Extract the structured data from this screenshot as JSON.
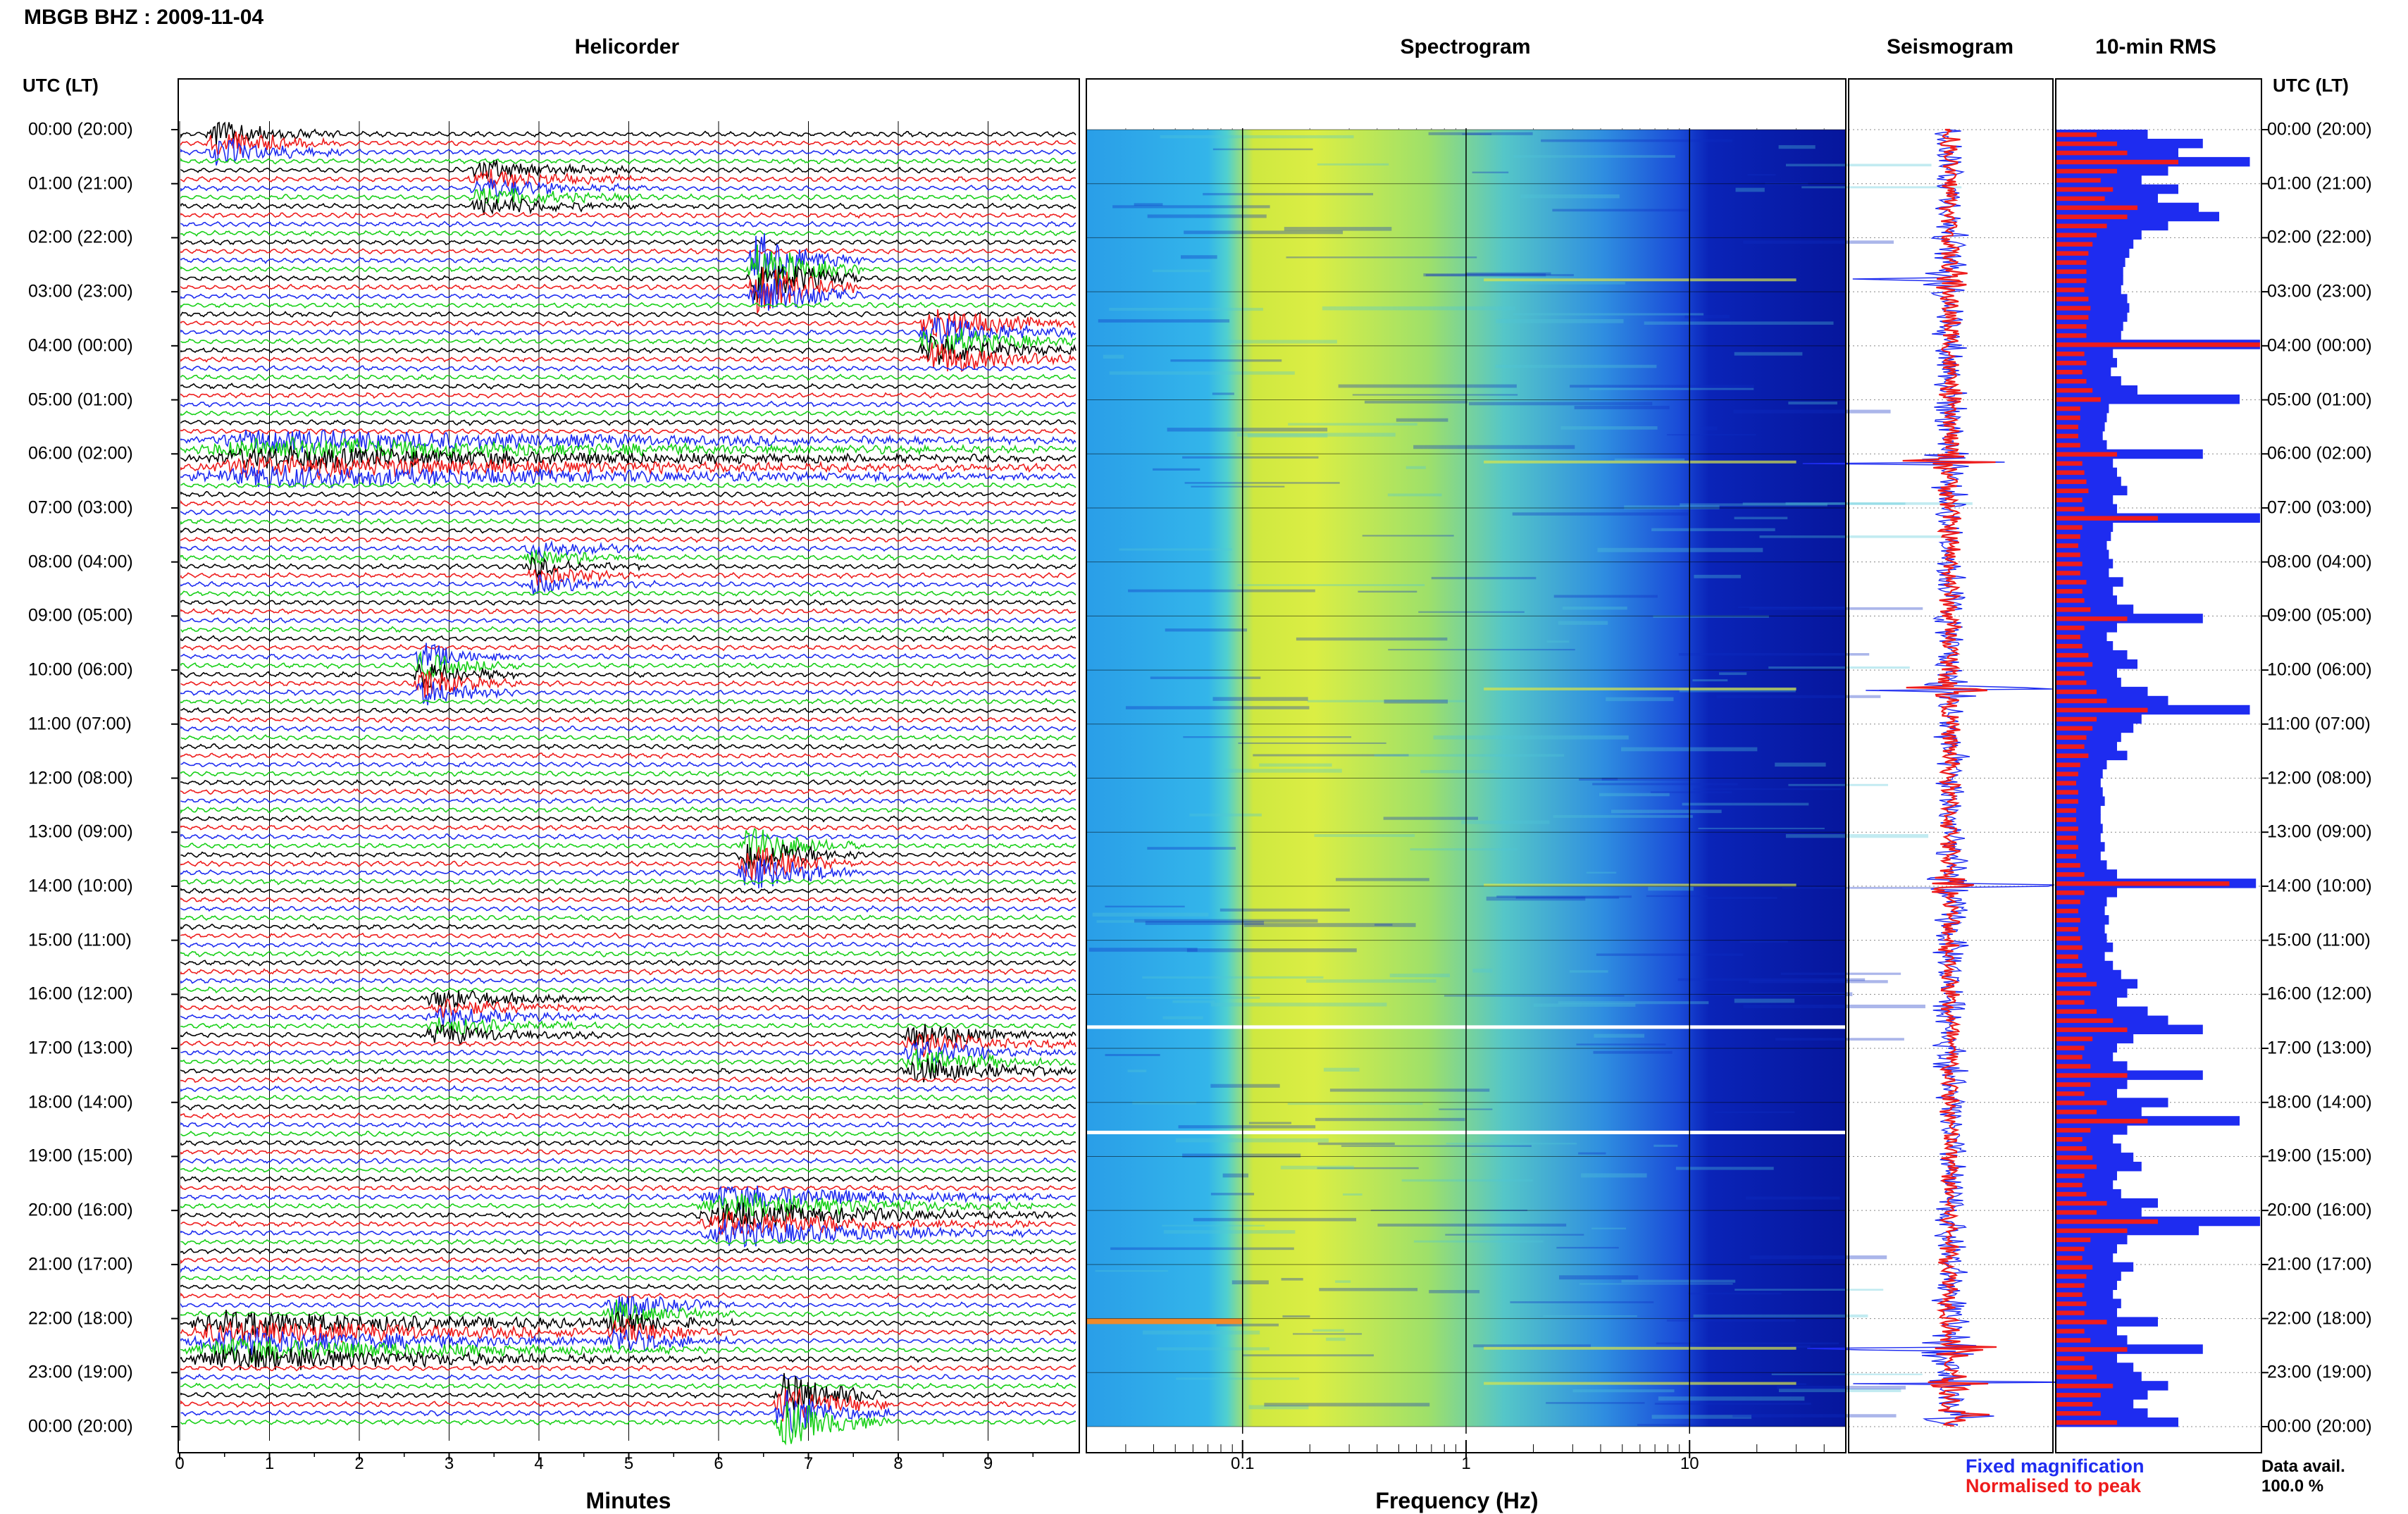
{
  "header": {
    "title": "MBGB BHZ : 2009-11-04"
  },
  "panels": {
    "helicorder": "Helicorder",
    "spectrogram": "Spectrogram",
    "seismogram": "Seismogram",
    "rms": "10-min RMS"
  },
  "axis": {
    "utc_label_left": "UTC (LT)",
    "utc_label_right": "UTC (LT)",
    "time_labels": [
      "00:00 (20:00)",
      "01:00 (21:00)",
      "02:00 (22:00)",
      "03:00 (23:00)",
      "04:00 (00:00)",
      "05:00 (01:00)",
      "06:00 (02:00)",
      "07:00 (03:00)",
      "08:00 (04:00)",
      "09:00 (05:00)",
      "10:00 (06:00)",
      "11:00 (07:00)",
      "12:00 (08:00)",
      "13:00 (09:00)",
      "14:00 (10:00)",
      "15:00 (11:00)",
      "16:00 (12:00)",
      "17:00 (13:00)",
      "18:00 (14:00)",
      "19:00 (15:00)",
      "20:00 (16:00)",
      "21:00 (17:00)",
      "22:00 (18:00)",
      "23:00 (19:00)",
      "00:00 (20:00)"
    ],
    "minutes_ticks": [
      "0",
      "1",
      "2",
      "3",
      "4",
      "5",
      "6",
      "7",
      "8",
      "9"
    ],
    "minutes_label": "Minutes",
    "freq_ticks": [
      "0.1",
      "1",
      "10"
    ],
    "freq_label": "Frequency (Hz)"
  },
  "legend": {
    "fixed": "Fixed magnification",
    "normalised": "Normalised to peak",
    "data_avail_label": "Data avail.",
    "data_avail_value": "100.0 %"
  },
  "colors": {
    "trace_cycle": [
      "#000000",
      "#ee1c1c",
      "#1e2cf0",
      "#18d018"
    ],
    "fixed": "#1e2cf0",
    "normalised": "#ee1c1c"
  },
  "chart_data": [
    {
      "type": "line",
      "title": "Helicorder",
      "xlabel": "Minutes",
      "xlim": [
        0,
        10
      ],
      "rows_per_hour": 6,
      "hours": 24,
      "events": [
        {
          "hour": 0.05,
          "minute": 0.3,
          "duration": 1.5,
          "amp": 1.8
        },
        {
          "hour": 1.0,
          "minute": 3.2,
          "duration": 2.0,
          "amp": 1.2
        },
        {
          "hour": 2.7,
          "minute": 6.3,
          "duration": 1.3,
          "amp": 3.5
        },
        {
          "hour": 3.9,
          "minute": 8.2,
          "duration": 1.8,
          "amp": 2.2
        },
        {
          "hour": 6.0,
          "minute": 0.0,
          "duration": 10.0,
          "amp": 1.4
        },
        {
          "hour": 8.0,
          "minute": 3.8,
          "duration": 1.5,
          "amp": 1.1
        },
        {
          "hour": 10.0,
          "minute": 2.6,
          "duration": 1.2,
          "amp": 1.8
        },
        {
          "hour": 13.4,
          "minute": 6.2,
          "duration": 1.4,
          "amp": 2.5
        },
        {
          "hour": 16.4,
          "minute": 2.7,
          "duration": 2.0,
          "amp": 1.2
        },
        {
          "hour": 17.0,
          "minute": 8.0,
          "duration": 2.0,
          "amp": 1.6
        },
        {
          "hour": 20.0,
          "minute": 5.7,
          "duration": 4.0,
          "amp": 1.6
        },
        {
          "hour": 22.0,
          "minute": 4.7,
          "duration": 1.5,
          "amp": 1.7
        },
        {
          "hour": 22.4,
          "minute": 0.0,
          "duration": 6.0,
          "amp": 1.6
        },
        {
          "hour": 23.6,
          "minute": 6.6,
          "duration": 1.3,
          "amp": 3.0
        }
      ]
    },
    {
      "type": "heatmap",
      "title": "Spectrogram",
      "xlabel": "Frequency (Hz)",
      "x_scale": "log",
      "xlim": [
        0.02,
        50
      ],
      "ylim_hours": [
        0,
        24
      ],
      "data_gaps_hours": [
        16.6,
        18.55
      ]
    },
    {
      "type": "line",
      "title": "Seismogram",
      "series": [
        {
          "name": "Fixed magnification"
        },
        {
          "name": "Normalised to peak"
        }
      ],
      "spikes_hours": [
        2.78,
        6.15,
        10.35,
        13.98,
        22.55,
        23.2,
        23.8
      ]
    },
    {
      "type": "bar",
      "title": "10-min RMS",
      "orientation": "horizontal",
      "series": [
        {
          "name": "Fixed magnification",
          "values": [
            0.45,
            0.72,
            0.6,
            0.95,
            0.55,
            0.42,
            0.6,
            0.5,
            0.7,
            0.8,
            0.55,
            0.42,
            0.38,
            0.36,
            0.34,
            0.33,
            0.33,
            0.32,
            0.35,
            0.36,
            0.35,
            0.33,
            0.32,
            1.0,
            0.28,
            0.3,
            0.27,
            0.32,
            0.4,
            0.9,
            0.26,
            0.25,
            0.24,
            0.23,
            0.25,
            0.72,
            0.28,
            0.3,
            0.32,
            0.35,
            0.28,
            0.3,
            1.0,
            0.28,
            0.27,
            0.25,
            0.26,
            0.28,
            0.26,
            0.33,
            0.28,
            0.3,
            0.38,
            0.72,
            0.3,
            0.25,
            0.28,
            0.35,
            0.4,
            0.3,
            0.32,
            0.45,
            0.55,
            0.95,
            0.42,
            0.38,
            0.32,
            0.3,
            0.35,
            0.25,
            0.23,
            0.22,
            0.23,
            0.24,
            0.22,
            0.22,
            0.23,
            0.22,
            0.24,
            0.22,
            0.25,
            0.3,
            0.98,
            0.3,
            0.25,
            0.24,
            0.26,
            0.24,
            0.25,
            0.28,
            0.24,
            0.28,
            0.32,
            0.4,
            0.35,
            0.3,
            0.45,
            0.55,
            0.72,
            0.38,
            0.3,
            0.28,
            0.35,
            0.72,
            0.35,
            0.3,
            0.55,
            0.42,
            0.9,
            0.35,
            0.28,
            0.32,
            0.38,
            0.42,
            0.3,
            0.28,
            0.32,
            0.5,
            0.42,
            1.0,
            0.7,
            0.35,
            0.3,
            0.28,
            0.38,
            0.32,
            0.3,
            0.28,
            0.32,
            0.3,
            0.5,
            0.3,
            0.35,
            0.72,
            0.3,
            0.38,
            0.42,
            0.55,
            0.45,
            0.38,
            0.45,
            0.6
          ]
        },
        {
          "name": "Normalised to peak",
          "values": [
            0.2,
            0.3,
            0.35,
            0.6,
            0.3,
            0.22,
            0.28,
            0.24,
            0.4,
            0.35,
            0.25,
            0.2,
            0.18,
            0.16,
            0.15,
            0.15,
            0.15,
            0.14,
            0.16,
            0.17,
            0.16,
            0.15,
            0.15,
            1.0,
            0.14,
            0.15,
            0.13,
            0.15,
            0.18,
            0.22,
            0.12,
            0.12,
            0.11,
            0.11,
            0.12,
            0.3,
            0.13,
            0.14,
            0.15,
            0.16,
            0.13,
            0.14,
            0.5,
            0.13,
            0.12,
            0.11,
            0.12,
            0.13,
            0.12,
            0.15,
            0.13,
            0.14,
            0.17,
            0.35,
            0.14,
            0.12,
            0.13,
            0.16,
            0.18,
            0.14,
            0.15,
            0.2,
            0.25,
            0.45,
            0.2,
            0.18,
            0.15,
            0.14,
            0.16,
            0.12,
            0.11,
            0.1,
            0.11,
            0.11,
            0.1,
            0.1,
            0.11,
            0.1,
            0.11,
            0.1,
            0.12,
            0.14,
            0.85,
            0.14,
            0.12,
            0.11,
            0.12,
            0.11,
            0.12,
            0.13,
            0.11,
            0.13,
            0.15,
            0.2,
            0.17,
            0.14,
            0.2,
            0.28,
            0.35,
            0.18,
            0.14,
            0.13,
            0.17,
            0.35,
            0.17,
            0.14,
            0.25,
            0.2,
            0.45,
            0.17,
            0.13,
            0.15,
            0.18,
            0.2,
            0.14,
            0.13,
            0.15,
            0.25,
            0.2,
            0.5,
            0.35,
            0.17,
            0.14,
            0.13,
            0.18,
            0.15,
            0.14,
            0.13,
            0.15,
            0.14,
            0.25,
            0.14,
            0.17,
            0.35,
            0.14,
            0.18,
            0.2,
            0.28,
            0.22,
            0.18,
            0.22,
            0.3
          ]
        }
      ],
      "data_avail_percent": 100.0
    }
  ]
}
